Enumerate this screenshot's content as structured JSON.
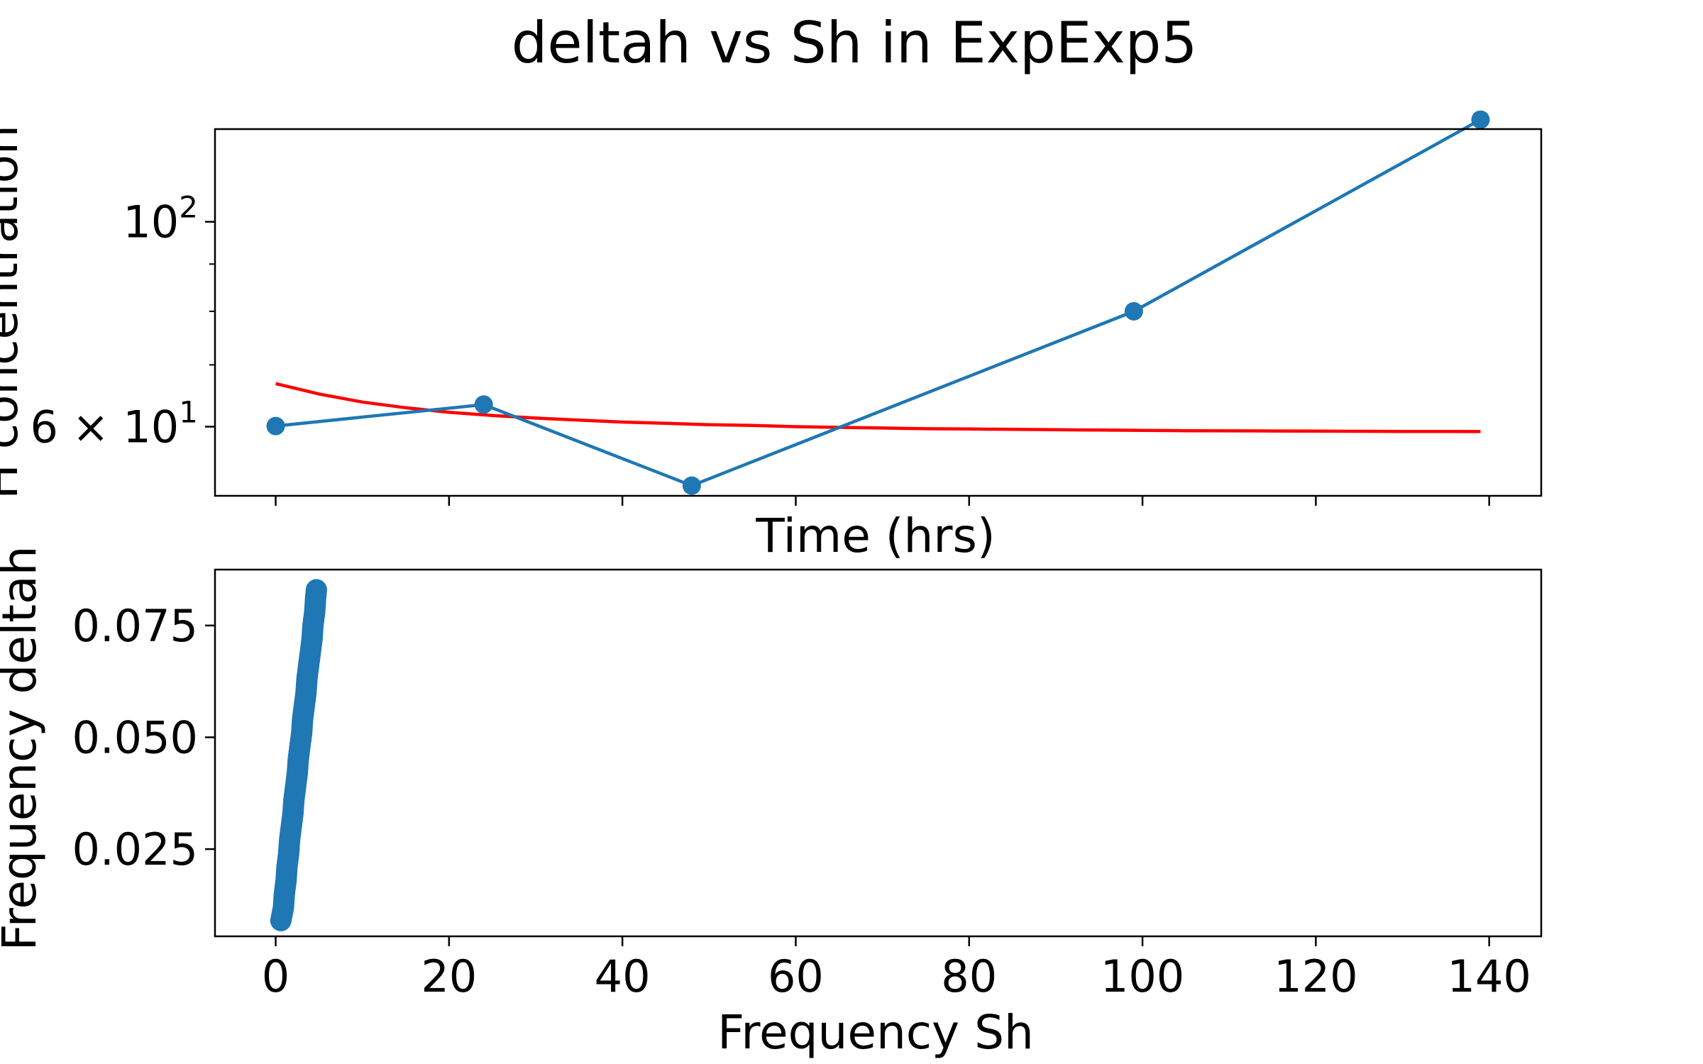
{
  "title": "deltah vs Sh in ExpExp5",
  "colors": {
    "series": "#1f77b4",
    "fit": "#ff0000",
    "axes": "#000000"
  },
  "chart_data": [
    {
      "type": "line",
      "xlabel": "Time (hrs)",
      "ylabel": "H concentration",
      "yscale": "log",
      "xlim": [
        -7,
        146
      ],
      "ylim": [
        50.5,
        126
      ],
      "grid": false,
      "x_tick_values": [
        0,
        20,
        40,
        60,
        80,
        100,
        120,
        140
      ],
      "x_tick_labels_shown": false,
      "y_major_ticks": [
        {
          "value": 100,
          "base": "10",
          "exp": "2"
        },
        {
          "value": 60,
          "base": "6 × 10",
          "exp": "1"
        }
      ],
      "y_minor_ticks": [
        70,
        80,
        90
      ],
      "series": [
        {
          "kind": "data",
          "marker": "circle",
          "x": [
            0,
            24,
            48,
            99,
            139
          ],
          "y": [
            60.1,
            63.4,
            51.8,
            80.0,
            129.0
          ]
        },
        {
          "kind": "fit",
          "marker": "none",
          "x": [
            0,
            5,
            10,
            15,
            20,
            25,
            30,
            35,
            40,
            45,
            50,
            55,
            60,
            65,
            70,
            75,
            80,
            85,
            90,
            95,
            100,
            105,
            110,
            115,
            120,
            125,
            130,
            135,
            139
          ],
          "y": [
            66.8,
            65.1,
            63.8,
            62.9,
            62.2,
            61.7,
            61.3,
            61.0,
            60.7,
            60.5,
            60.3,
            60.2,
            60.0,
            59.9,
            59.8,
            59.7,
            59.65,
            59.6,
            59.55,
            59.5,
            59.45,
            59.4,
            59.38,
            59.36,
            59.34,
            59.32,
            59.3,
            59.29,
            59.28
          ]
        }
      ]
    },
    {
      "type": "scatter",
      "xlabel": "Frequency Sh",
      "ylabel": "Frequency deltah",
      "xlim": [
        -7,
        146
      ],
      "ylim": [
        0.0055,
        0.0875
      ],
      "grid": false,
      "x_ticks": [
        0,
        20,
        40,
        60,
        80,
        100,
        120,
        140
      ],
      "y_ticks": [
        0.025,
        0.05,
        0.075
      ],
      "y_tick_labels": [
        "0.025",
        "0.050",
        "0.075"
      ],
      "series": [
        {
          "marker": "circle",
          "x": [
            0.6,
            0.9,
            1.0,
            1.2,
            1.3,
            1.5,
            1.6,
            1.8,
            2.0,
            2.1,
            2.3,
            2.5,
            2.6,
            2.8,
            3.0,
            3.1,
            3.3,
            3.5,
            3.6,
            3.8,
            4.0,
            4.2,
            4.3,
            4.5,
            4.6,
            4.7
          ],
          "y": [
            0.009,
            0.012,
            0.015,
            0.018,
            0.021,
            0.024,
            0.027,
            0.03,
            0.033,
            0.036,
            0.039,
            0.042,
            0.045,
            0.048,
            0.051,
            0.054,
            0.057,
            0.06,
            0.063,
            0.066,
            0.069,
            0.072,
            0.075,
            0.078,
            0.081,
            0.083
          ]
        }
      ]
    }
  ]
}
